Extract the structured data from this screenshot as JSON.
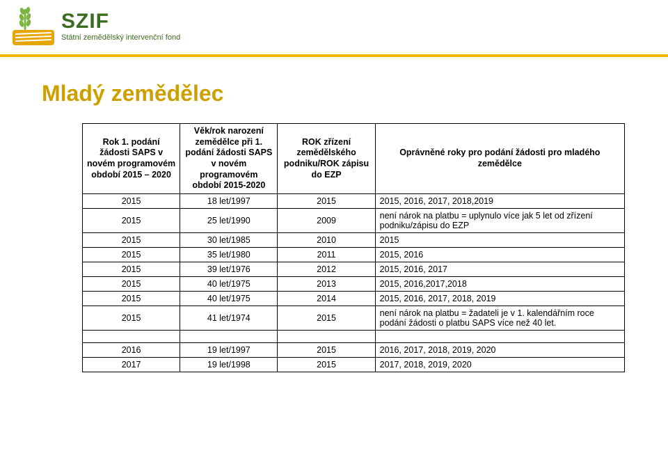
{
  "brand": {
    "name": "SZIF",
    "subtitle": "Státní zemědělský intervenční fond"
  },
  "page": {
    "title": "Mladý zemědělec"
  },
  "colors": {
    "accent_yellow": "#f2b600",
    "title_olive": "#cda000",
    "szif_green": "#3a6b1e",
    "logo_orange": "#e7a500",
    "logo_ear": "#7cb542"
  },
  "table": {
    "headers": {
      "c1": "Rok 1. podání žádosti SAPS v novém programovém období 2015 – 2020",
      "c2": "Věk/rok narození zemědělce při 1. podání žádosti SAPS v novém programovém období 2015-2020",
      "c3": "ROK zřízení zemědělského podniku/ROK zápisu do EZP",
      "c4": "Oprávněné roky pro podání žádosti pro mladého zemědělce"
    },
    "group1": [
      {
        "c1": "2015",
        "c2": "18 let/1997",
        "c3": "2015",
        "c4": "2015, 2016, 2017, 2018,2019"
      },
      {
        "c1": "2015",
        "c2": "25 let/1990",
        "c3": "2009",
        "c4": "není nárok na platbu = uplynulo více jak 5 let od zřízení podniku/zápisu do EZP"
      },
      {
        "c1": "2015",
        "c2": "30 let/1985",
        "c3": "2010",
        "c4": "2015"
      },
      {
        "c1": "2015",
        "c2": "35 let/1980",
        "c3": "2011",
        "c4": "2015, 2016"
      },
      {
        "c1": "2015",
        "c2": "39 let/1976",
        "c3": "2012",
        "c4": "2015, 2016, 2017"
      },
      {
        "c1": "2015",
        "c2": "40 let/1975",
        "c3": "2013",
        "c4": "2015, 2016,2017,2018"
      },
      {
        "c1": "2015",
        "c2": "40 let/1975",
        "c3": "2014",
        "c4": "2015, 2016, 2017, 2018, 2019"
      },
      {
        "c1": "2015",
        "c2": "41 let/1974",
        "c3": "2015",
        "c4": "není nárok na platbu = žadateli je v 1. kalendářním roce podání žádosti o platbu SAPS více než 40 let."
      }
    ],
    "group2": [
      {
        "c1": "2016",
        "c2": "19 let/1997",
        "c3": "2015",
        "c4": "2016, 2017, 2018, 2019, 2020"
      },
      {
        "c1": "2017",
        "c2": "19 let/1998",
        "c3": "2015",
        "c4": "2017, 2018, 2019, 2020"
      }
    ]
  }
}
